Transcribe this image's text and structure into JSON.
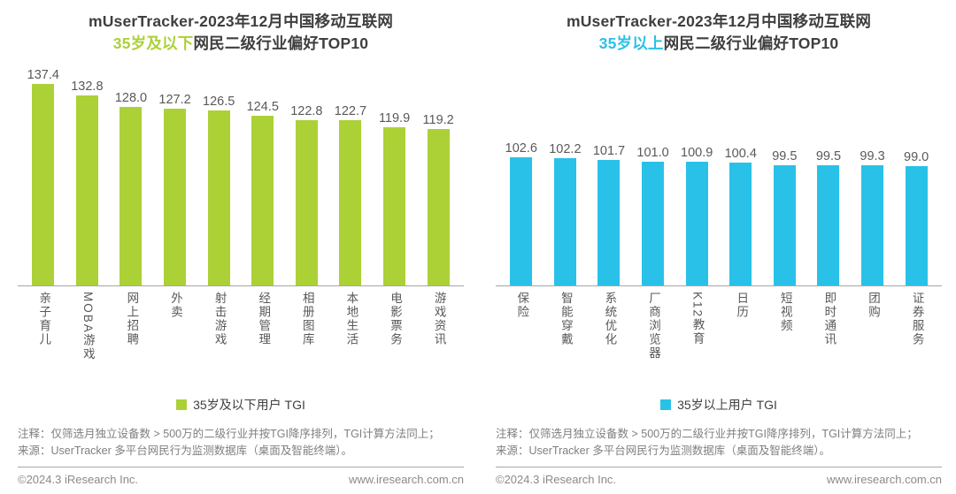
{
  "footer": {
    "copyright": "©2024.3 iResearch Inc.",
    "website": "www.iresearch.com.cn"
  },
  "notes": {
    "line1": "注释：仅筛选月独立设备数 > 500万的二级行业并按TGI降序排列，TGI计算方法同上；",
    "line2": "来源：UserTracker 多平台网民行为监测数据库（桌面及智能终端）。"
  },
  "chart_data": [
    {
      "type": "bar",
      "title_line1": "mUserTracker-2023年12月中国移动互联网",
      "title_highlight": "35岁及以下",
      "title_rest": "网民二级行业偏好TOP10",
      "categories": [
        "亲子育儿",
        "MOBA游戏",
        "网上招聘",
        "外卖",
        "射击游戏",
        "经期管理",
        "相册图库",
        "本地生活",
        "电影票务",
        "游戏资讯"
      ],
      "values": [
        137.4,
        132.8,
        128.0,
        127.2,
        126.5,
        124.5,
        122.8,
        122.7,
        119.9,
        119.2
      ],
      "legend": [
        "35岁及以下用户 TGI"
      ],
      "legend_position": "bottom",
      "bar_color": "#ABD137",
      "value_axis_range": [
        55,
        140
      ],
      "grid": false,
      "data_labels": true,
      "data_label_decimals": 1
    },
    {
      "type": "bar",
      "title_line1": "mUserTracker-2023年12月中国移动互联网",
      "title_highlight": "35岁以上",
      "title_rest": "网民二级行业偏好TOP10",
      "categories": [
        "保险",
        "智能穿戴",
        "系统优化",
        "厂商浏览器",
        "K12教育",
        "日历",
        "短视频",
        "即时通讯",
        "团购",
        "证券服务"
      ],
      "values": [
        102.6,
        102.2,
        101.7,
        101.0,
        100.9,
        100.4,
        99.5,
        99.5,
        99.3,
        99.0
      ],
      "legend": [
        "35岁以上用户 TGI"
      ],
      "legend_position": "bottom",
      "bar_color": "#29C1E7",
      "value_axis_range": [
        49,
        136
      ],
      "grid": false,
      "data_labels": true,
      "data_label_decimals": 1
    }
  ]
}
